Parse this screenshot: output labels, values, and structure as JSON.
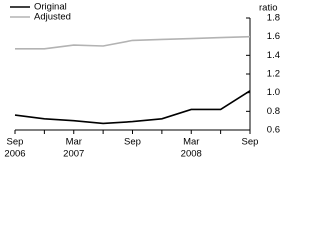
{
  "chart_data": {
    "type": "line",
    "y_label": "ratio",
    "categories": [
      "Sep",
      null,
      "Mar",
      null,
      "Sep",
      null,
      "Mar",
      null,
      "Sep"
    ],
    "category_years": [
      "2006",
      null,
      "2007",
      null,
      null,
      null,
      "2008",
      null,
      null
    ],
    "series": [
      {
        "name": "Original",
        "color": "#000000",
        "values": [
          0.76,
          0.72,
          0.7,
          0.67,
          0.69,
          0.72,
          0.82,
          0.82,
          1.02
        ]
      },
      {
        "name": "Adjusted",
        "color": "#b3b3b3",
        "values": [
          1.47,
          1.47,
          1.51,
          1.5,
          1.56,
          1.57,
          1.58,
          1.59,
          1.6
        ]
      }
    ],
    "ylim": [
      0.6,
      1.8
    ],
    "yticks": [
      0.6,
      0.8,
      {
        "value": 1,
        "label": "1.0"
      },
      1.2,
      1.4,
      1.6,
      1.8
    ],
    "legend": "top-left"
  }
}
